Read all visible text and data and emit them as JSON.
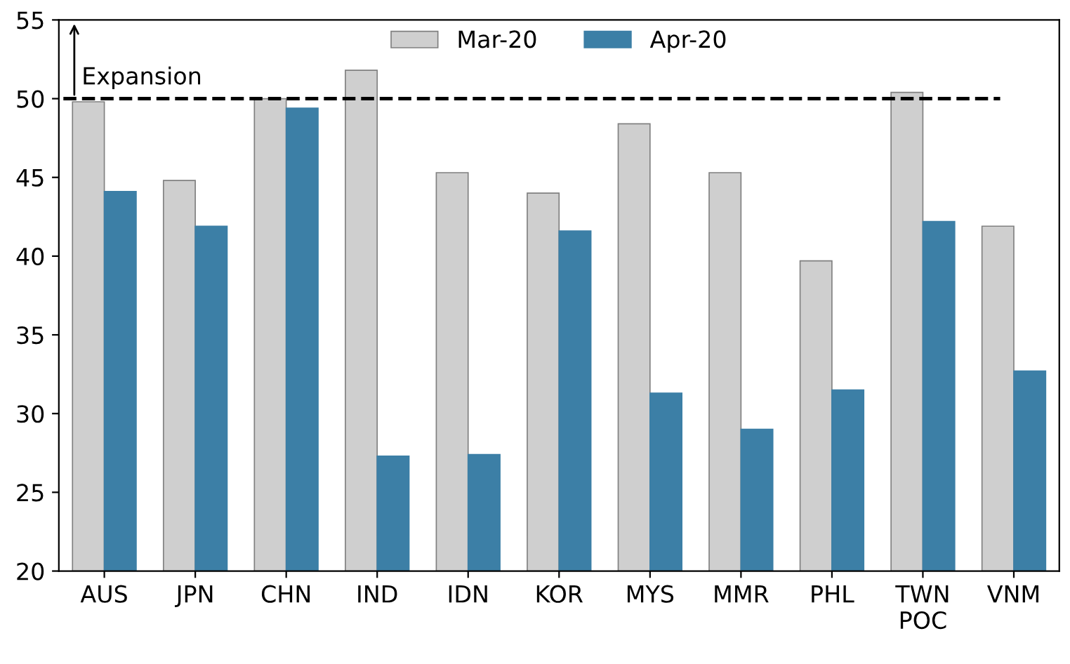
{
  "chart_data": {
    "type": "bar",
    "categories": [
      "AUS",
      "JPN",
      "CHN",
      "IND",
      "IDN",
      "KOR",
      "MYS",
      "MMR",
      "PHL",
      "TWN\nPOC",
      "VNM"
    ],
    "series": [
      {
        "name": "Mar-20",
        "color": "#cfcfcf",
        "values": [
          49.8,
          44.8,
          50.0,
          51.8,
          45.3,
          44.0,
          48.4,
          45.3,
          39.7,
          50.4,
          41.9
        ]
      },
      {
        "name": "Apr-20",
        "color": "#3c7fa6",
        "values": [
          44.1,
          41.9,
          49.4,
          27.3,
          27.4,
          41.6,
          31.3,
          29.0,
          31.5,
          42.2,
          32.7
        ]
      }
    ],
    "ylim": [
      20,
      55
    ],
    "yticks": [
      20,
      25,
      30,
      35,
      40,
      45,
      50,
      55
    ],
    "ref_lines": [
      {
        "axis": "y",
        "value": 50,
        "label": "Expansion",
        "color": "#000000",
        "line_style": "dashed"
      }
    ],
    "legend": "top",
    "grid": false
  }
}
